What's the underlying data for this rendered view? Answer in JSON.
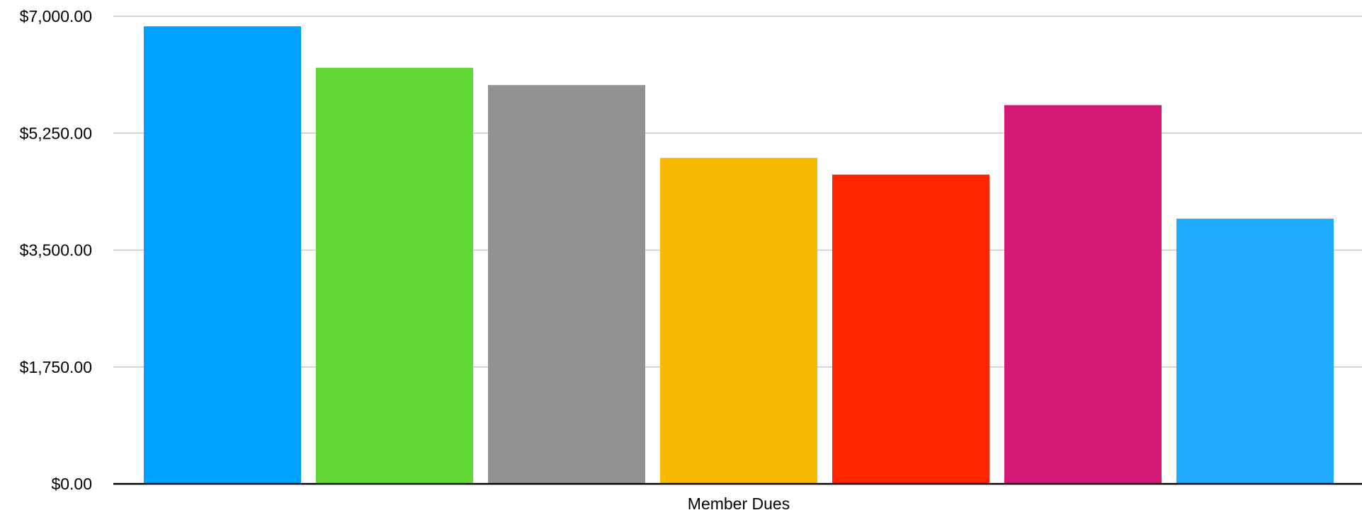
{
  "chart_data": {
    "type": "bar",
    "categories": [
      "Member Dues"
    ],
    "series": [
      {
        "values": [
          6850
        ],
        "color": "#00a2ff"
      },
      {
        "values": [
          6230
        ],
        "color": "#61d836"
      },
      {
        "values": [
          5970
        ],
        "color": "#929292"
      },
      {
        "values": [
          4880
        ],
        "color": "#f8ba00"
      },
      {
        "values": [
          4630
        ],
        "color": "#ff2600"
      },
      {
        "values": [
          5670
        ],
        "color": "#d31876"
      },
      {
        "values": [
          3970
        ],
        "color": "#21abff"
      }
    ],
    "title": "",
    "xlabel": "",
    "ylabel": "",
    "ylim": [
      0,
      7000
    ],
    "yticks": [
      0,
      1750,
      3500,
      5250,
      7000
    ],
    "ytick_labels": [
      "$0.00",
      "$1,750.00",
      "$3,500.00",
      "$5,250.00",
      "$7,000.00"
    ],
    "grid": true,
    "legend": "none"
  }
}
